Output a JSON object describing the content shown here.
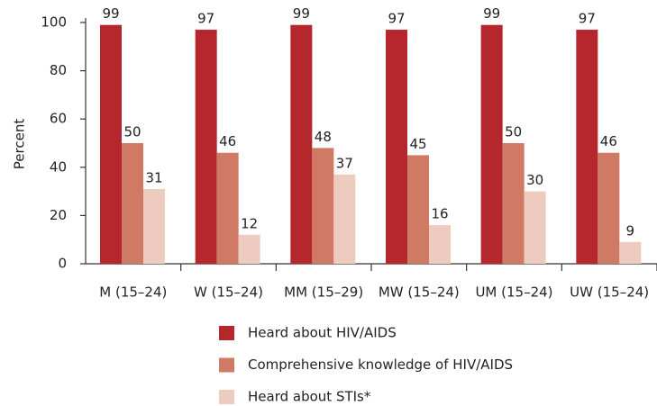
{
  "chart_data": {
    "type": "bar",
    "categories": [
      "M (15–24)",
      "W (15–24)",
      "MM (15–29)",
      "MW (15–24)",
      "UM (15–24)",
      "UW (15–24)"
    ],
    "series": [
      {
        "name": "Heard about HIV/AIDS",
        "color": "#b5262d",
        "values": [
          99,
          97,
          99,
          97,
          99,
          97
        ]
      },
      {
        "name": "Comprehensive knowledge of HIV/AIDS",
        "color": "#d07a66",
        "values": [
          50,
          46,
          48,
          45,
          50,
          46
        ]
      },
      {
        "name": "Heard about STIs*",
        "color": "#eecbbf",
        "values": [
          31,
          12,
          37,
          16,
          30,
          9
        ]
      }
    ],
    "y_label": "Percent",
    "ylim": [
      0,
      100
    ],
    "yticks": [
      0,
      20,
      40,
      60,
      80,
      100
    ]
  }
}
